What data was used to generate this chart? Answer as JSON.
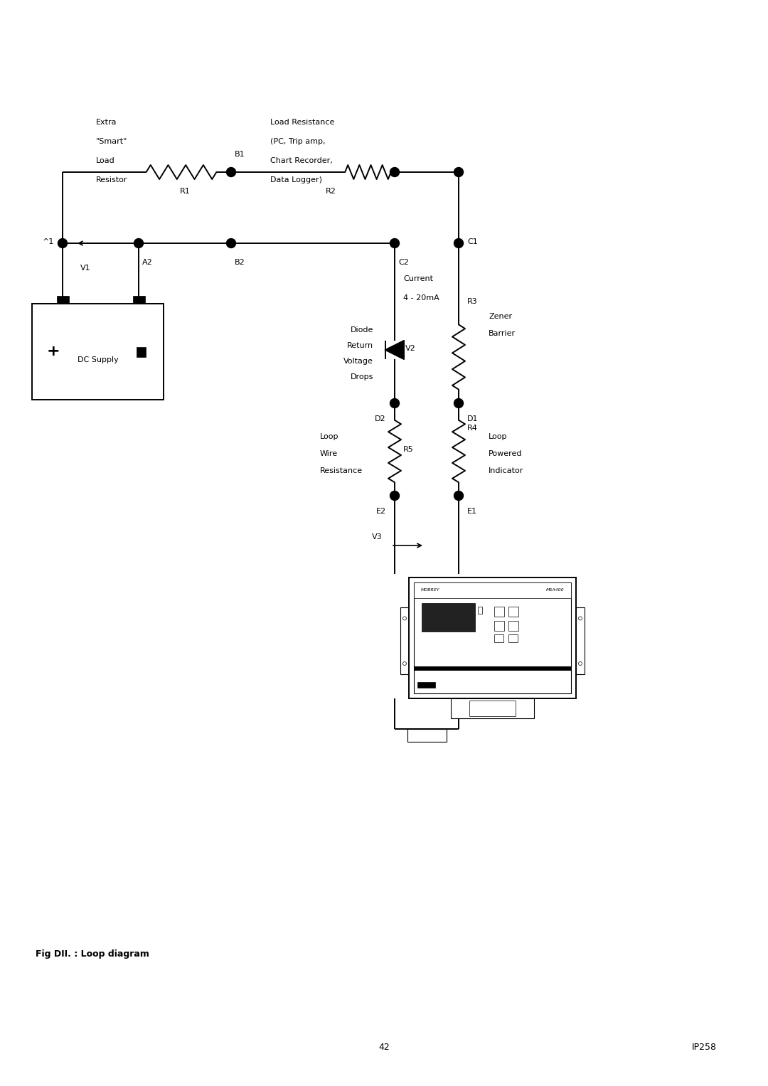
{
  "bg_color": "#ffffff",
  "line_color": "#000000",
  "fig_width": 10.8,
  "fig_height": 15.27,
  "caption": "Fig DII. : Loop diagram",
  "page_num": "42",
  "page_id": "IP258"
}
